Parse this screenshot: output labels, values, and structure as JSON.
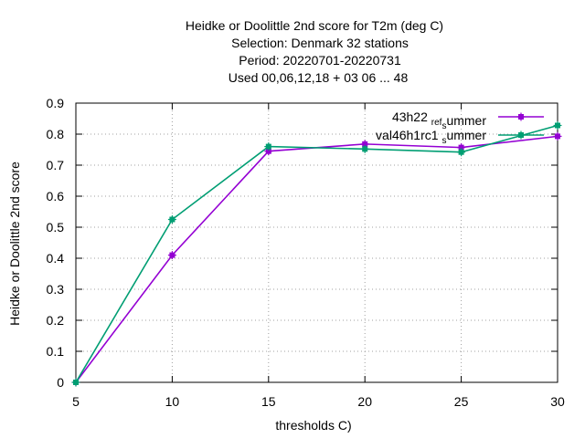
{
  "title_lines": [
    "Heidke or Doolittle 2nd score  for T2m (deg C)",
    "Selection: Denmark     32 stations",
    "Period: 20220701-20220731",
    "Used  00,06,12,18 + 03 06 ... 48"
  ],
  "chart_data": {
    "type": "line",
    "xlabel": "thresholds C)",
    "ylabel": "Heidke or Doolittle 2nd score",
    "xlim": [
      5,
      30
    ],
    "ylim": [
      0,
      0.9
    ],
    "xticks": [
      5,
      10,
      15,
      20,
      25,
      30
    ],
    "yticks": [
      0,
      0.1,
      0.2,
      0.3,
      0.4,
      0.5,
      0.6,
      0.7,
      0.8,
      0.9
    ],
    "grid": true,
    "legend_position": "top-right",
    "x": [
      5,
      10,
      15,
      20,
      25,
      30
    ],
    "series": [
      {
        "name": "43h22_ref_summer",
        "legend_parts": [
          [
            "43h22 ",
            "t"
          ],
          [
            "ref",
            "s"
          ],
          [
            "s",
            "s"
          ],
          [
            "ummer",
            "t"
          ]
        ],
        "color": "#9400d3",
        "values": [
          0.0,
          0.41,
          0.745,
          0.768,
          0.757,
          0.793
        ]
      },
      {
        "name": "val46h1rc1_summer",
        "legend_parts": [
          [
            "val46h1rc1 ",
            "t"
          ],
          [
            "s",
            "s"
          ],
          [
            "ummer",
            "t"
          ]
        ],
        "color": "#009e73",
        "values": [
          0.0,
          0.525,
          0.76,
          0.752,
          0.742,
          0.828
        ]
      }
    ]
  }
}
